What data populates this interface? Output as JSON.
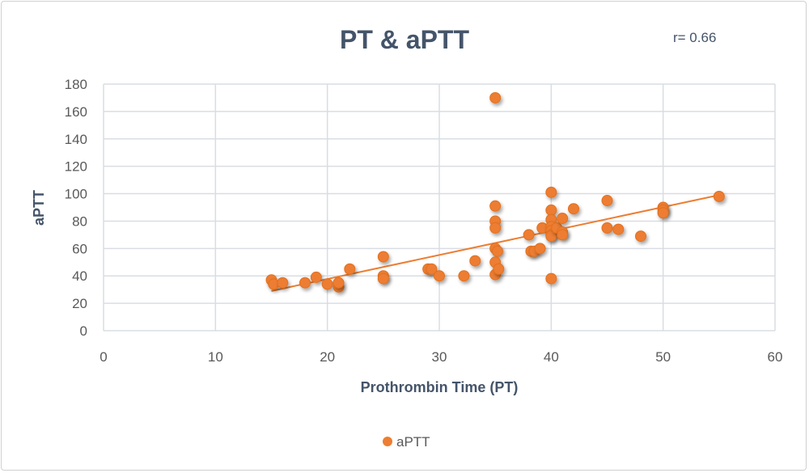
{
  "chart_data": {
    "type": "scatter",
    "title": "PT & aPTT",
    "annotation": "r= 0.66",
    "xlabel": "Prothrombin Time (PT)",
    "ylabel": "aPTT",
    "xlim": [
      0,
      60
    ],
    "ylim": [
      0,
      180
    ],
    "xticks": [
      0,
      10,
      20,
      30,
      40,
      50,
      60
    ],
    "yticks": [
      0,
      20,
      40,
      60,
      80,
      100,
      120,
      140,
      160,
      180
    ],
    "grid": true,
    "legend": "bottom",
    "colors": {
      "marker": "#ed7d31",
      "trendline": "#ed7d31",
      "grid": "#d9dde3"
    },
    "trendline": {
      "type": "linear",
      "x": [
        15,
        55
      ],
      "y": [
        29,
        99
      ]
    },
    "series": [
      {
        "name": "aPTT",
        "points": [
          [
            15,
            37
          ],
          [
            15.2,
            34
          ],
          [
            16,
            35
          ],
          [
            18,
            35
          ],
          [
            19,
            39
          ],
          [
            20,
            34
          ],
          [
            21,
            32
          ],
          [
            21,
            35
          ],
          [
            22,
            45
          ],
          [
            25,
            54
          ],
          [
            25,
            40
          ],
          [
            25,
            38
          ],
          [
            29,
            45
          ],
          [
            29.3,
            45
          ],
          [
            30,
            40
          ],
          [
            32.2,
            40
          ],
          [
            33.2,
            51
          ],
          [
            35,
            170
          ],
          [
            35,
            91
          ],
          [
            35,
            80
          ],
          [
            35,
            75
          ],
          [
            35,
            60
          ],
          [
            35.2,
            58
          ],
          [
            35,
            50
          ],
          [
            35,
            41
          ],
          [
            35.3,
            45
          ],
          [
            38,
            70
          ],
          [
            38.2,
            58
          ],
          [
            38.5,
            58
          ],
          [
            39,
            60
          ],
          [
            39.2,
            75
          ],
          [
            40,
            101
          ],
          [
            40,
            88
          ],
          [
            40,
            81
          ],
          [
            40,
            76
          ],
          [
            40,
            73
          ],
          [
            40,
            70
          ],
          [
            40,
            69
          ],
          [
            40,
            38
          ],
          [
            40.5,
            75
          ],
          [
            41,
            82
          ],
          [
            41,
            72
          ],
          [
            41,
            70
          ],
          [
            42,
            89
          ],
          [
            45,
            95
          ],
          [
            45,
            75
          ],
          [
            46,
            74
          ],
          [
            48,
            69
          ],
          [
            50,
            90
          ],
          [
            50,
            88
          ],
          [
            50,
            86
          ],
          [
            55,
            98
          ]
        ]
      }
    ]
  }
}
